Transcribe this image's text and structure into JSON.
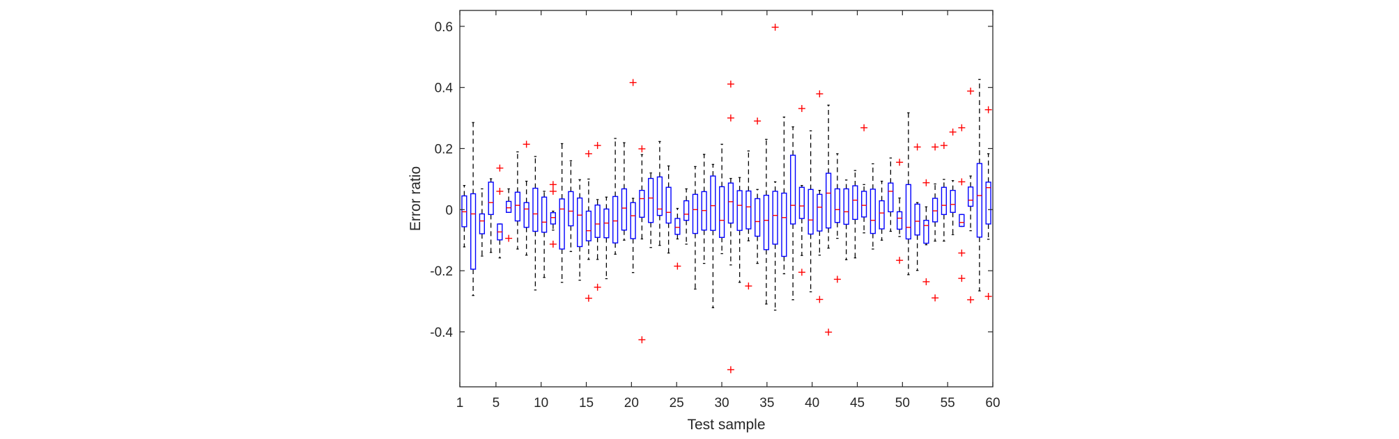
{
  "chart_data": {
    "type": "box",
    "title": "",
    "xlabel": "Test sample",
    "ylabel": "Error ratio",
    "xlim": [
      1,
      60
    ],
    "ylim": [
      -0.58,
      0.652
    ],
    "xticks": [
      "1",
      "5",
      "10",
      "15",
      "20",
      "25",
      "30",
      "35",
      "40",
      "45",
      "50",
      "55",
      "60"
    ],
    "xtick_values": [
      1,
      5,
      10,
      15,
      20,
      25,
      30,
      35,
      40,
      45,
      50,
      55,
      60
    ],
    "yticks": [
      "-0.4",
      "-0.2",
      "0",
      "0.2",
      "0.4",
      "0.6"
    ],
    "ytick_values": [
      -0.4,
      -0.2,
      0,
      0.2,
      0.4,
      0.6
    ],
    "grid": false,
    "colors": {
      "box": "#0000ff",
      "median": "#ff0000",
      "whisker": "#000000",
      "outlier": "#ff0000",
      "axis": "#262626"
    },
    "box_fields": [
      "whisker_low",
      "q1",
      "median",
      "q3",
      "whisker_high",
      "outliers"
    ],
    "boxes": [
      [
        -0.122,
        -0.056,
        -0.007,
        0.045,
        0.079,
        []
      ],
      [
        -0.281,
        -0.195,
        -0.014,
        0.052,
        0.285,
        []
      ],
      [
        -0.152,
        -0.079,
        -0.037,
        -0.014,
        0.068,
        []
      ],
      [
        -0.14,
        -0.016,
        0.023,
        0.09,
        0.101,
        []
      ],
      [
        -0.158,
        -0.099,
        -0.073,
        -0.047,
        -0.047,
        [
          0.136,
          0.06
        ]
      ],
      [
        -0.009,
        -0.009,
        0.006,
        0.027,
        0.068,
        [
          -0.094
        ]
      ],
      [
        -0.129,
        -0.037,
        0.014,
        0.057,
        0.189,
        []
      ],
      [
        -0.149,
        -0.058,
        0.002,
        0.023,
        0.093,
        [
          0.214
        ]
      ],
      [
        -0.263,
        -0.071,
        -0.014,
        0.07,
        0.174,
        []
      ],
      [
        -0.222,
        -0.074,
        -0.041,
        0.041,
        0.06,
        []
      ],
      [
        -0.067,
        -0.047,
        -0.026,
        -0.01,
        -0.005,
        [
          0.082,
          0.06,
          -0.113
        ]
      ],
      [
        -0.238,
        -0.129,
        0.002,
        0.035,
        0.216,
        []
      ],
      [
        -0.137,
        -0.053,
        -0.005,
        0.059,
        0.16,
        []
      ],
      [
        -0.231,
        -0.121,
        -0.018,
        0.038,
        0.098,
        []
      ],
      [
        -0.163,
        -0.102,
        -0.069,
        -0.005,
        0.1,
        [
          0.183,
          -0.29
        ]
      ],
      [
        -0.163,
        -0.091,
        -0.047,
        0.015,
        0.033,
        [
          0.21,
          -0.254
        ]
      ],
      [
        -0.226,
        -0.092,
        -0.044,
        0.002,
        0.041,
        []
      ],
      [
        -0.146,
        -0.109,
        -0.037,
        0.043,
        0.233,
        []
      ],
      [
        -0.1,
        -0.067,
        0.005,
        0.068,
        0.219,
        []
      ],
      [
        -0.206,
        -0.095,
        -0.02,
        0.023,
        0.037,
        [
          0.416
        ]
      ],
      [
        -0.096,
        -0.025,
        0.036,
        0.063,
        0.18,
        [
          0.199,
          -0.426
        ]
      ],
      [
        -0.124,
        -0.042,
        0.038,
        0.102,
        0.12,
        []
      ],
      [
        -0.117,
        -0.019,
        0.002,
        0.107,
        0.223,
        []
      ],
      [
        -0.142,
        -0.044,
        -0.009,
        0.073,
        0.143,
        []
      ],
      [
        -0.096,
        -0.081,
        -0.058,
        -0.029,
        0.004,
        [
          -0.185
        ]
      ],
      [
        -0.113,
        -0.035,
        -0.015,
        0.029,
        0.068,
        []
      ],
      [
        -0.26,
        -0.078,
        0.0,
        0.05,
        0.141,
        []
      ],
      [
        -0.176,
        -0.067,
        -0.003,
        0.059,
        0.181,
        []
      ],
      [
        -0.321,
        -0.068,
        0.013,
        0.11,
        0.148,
        []
      ],
      [
        -0.144,
        -0.091,
        -0.035,
        0.075,
        0.214,
        []
      ],
      [
        -0.181,
        -0.044,
        0.026,
        0.087,
        0.102,
        [
          0.411,
          0.3,
          -0.524
        ]
      ],
      [
        -0.238,
        -0.068,
        0.014,
        0.062,
        0.105,
        []
      ],
      [
        -0.102,
        -0.063,
        0.009,
        0.061,
        0.192,
        [
          -0.25
        ]
      ],
      [
        -0.176,
        -0.087,
        -0.039,
        0.036,
        0.066,
        [
          0.29
        ]
      ],
      [
        -0.309,
        -0.131,
        -0.035,
        0.047,
        0.23,
        []
      ],
      [
        -0.329,
        -0.113,
        -0.019,
        0.06,
        0.091,
        [
          0.597
        ]
      ],
      [
        -0.21,
        -0.153,
        -0.026,
        0.054,
        0.303,
        []
      ],
      [
        -0.295,
        -0.047,
        0.014,
        0.178,
        0.271,
        []
      ],
      [
        -0.15,
        -0.029,
        0.012,
        0.073,
        0.079,
        [
          0.331,
          -0.205
        ]
      ],
      [
        -0.269,
        -0.08,
        -0.034,
        0.066,
        0.258,
        []
      ],
      [
        -0.149,
        -0.07,
        0.008,
        0.05,
        0.063,
        [
          0.379,
          -0.294
        ]
      ],
      [
        -0.126,
        -0.06,
        0.054,
        0.119,
        0.342,
        [
          -0.401
        ]
      ],
      [
        -0.094,
        -0.042,
        0.0,
        0.068,
        0.183,
        [
          -0.228
        ]
      ],
      [
        -0.164,
        -0.048,
        -0.007,
        0.068,
        0.097,
        []
      ],
      [
        -0.158,
        -0.032,
        0.031,
        0.078,
        0.128,
        []
      ],
      [
        -0.076,
        -0.024,
        0.014,
        0.06,
        0.082,
        [
          0.268
        ]
      ],
      [
        -0.129,
        -0.078,
        -0.035,
        0.067,
        0.15,
        []
      ],
      [
        -0.1,
        -0.063,
        -0.011,
        0.029,
        0.093,
        []
      ],
      [
        -0.071,
        -0.007,
        0.06,
        0.087,
        0.169,
        []
      ],
      [
        -0.088,
        -0.064,
        -0.028,
        -0.007,
        0.038,
        [
          0.155,
          -0.166
        ]
      ],
      [
        -0.213,
        -0.096,
        -0.058,
        0.082,
        0.317,
        []
      ],
      [
        -0.199,
        -0.083,
        -0.038,
        0.018,
        0.023,
        [
          0.205
        ]
      ],
      [
        -0.115,
        -0.11,
        -0.052,
        -0.035,
        0.009,
        [
          0.088,
          -0.236
        ]
      ],
      [
        -0.103,
        -0.04,
        -0.004,
        0.037,
        0.084,
        [
          0.205,
          -0.289
        ]
      ],
      [
        -0.103,
        -0.016,
        0.014,
        0.073,
        0.099,
        [
          0.21
        ]
      ],
      [
        -0.082,
        -0.009,
        0.017,
        0.063,
        0.095,
        [
          0.254
        ]
      ],
      [
        -0.055,
        -0.055,
        -0.042,
        -0.016,
        -0.016,
        [
          0.268,
          0.091,
          -0.142,
          -0.225
        ]
      ],
      [
        -0.069,
        0.011,
        0.031,
        0.074,
        0.11,
        [
          0.388,
          -0.295
        ]
      ],
      [
        -0.266,
        -0.09,
        0.046,
        0.151,
        0.426,
        []
      ],
      [
        -0.097,
        -0.047,
        0.072,
        0.09,
        0.183,
        [
          0.327,
          -0.284
        ]
      ]
    ]
  }
}
